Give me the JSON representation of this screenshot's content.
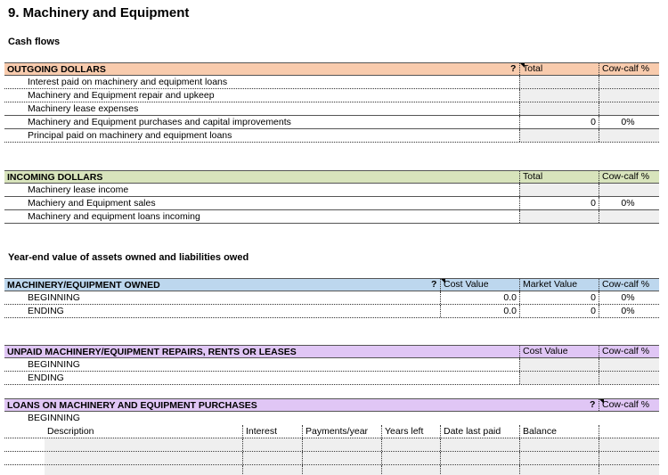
{
  "title": "9. Machinery and Equipment",
  "cash_flows_label": "Cash flows",
  "year_end_label": "Year-end value of assets owned and liabilities owed",
  "colors": {
    "outgoing": "#f8cbad",
    "incoming": "#d8e4bc",
    "owned": "#bdd7ee",
    "unpaid": "#e0c6f5",
    "loans": "#e0c6f5",
    "input_cell": "#efefef"
  },
  "outgoing": {
    "header": "OUTGOING DOLLARS",
    "has_help": true,
    "help": "?",
    "columns": [
      "Total",
      "Cow-calf %"
    ],
    "rows": [
      {
        "label": "Interest paid on machinery and equipment loans",
        "values": [
          "",
          ""
        ],
        "input": true
      },
      {
        "label": "Machinery and Equipment repair and upkeep",
        "values": [
          "",
          ""
        ],
        "input": true
      },
      {
        "label": "Machinery lease expenses",
        "values": [
          "",
          ""
        ],
        "input": true
      },
      {
        "label": "Machinery and Equipment purchases and capital improvements",
        "values": [
          "0",
          "0%"
        ],
        "input": false
      },
      {
        "label": "Principal paid on machinery and equipment loans",
        "values": [
          "",
          ""
        ],
        "input": true
      }
    ]
  },
  "incoming": {
    "header": "INCOMING DOLLARS",
    "columns": [
      "Total",
      "Cow-calf %"
    ],
    "rows": [
      {
        "label": "Machinery lease income",
        "values": [
          "",
          ""
        ],
        "input": true
      },
      {
        "label": "Machiery and Equipment sales",
        "values": [
          "0",
          "0%"
        ],
        "input": false
      },
      {
        "label": "Machinery and equipment loans incoming",
        "values": [
          "",
          ""
        ],
        "input": true
      }
    ]
  },
  "owned": {
    "header": "MACHINERY/EQUIPMENT OWNED",
    "has_help": true,
    "help": "?",
    "columns": [
      "Cost Value",
      "Market Value",
      "Cow-calf %"
    ],
    "rows": [
      {
        "label": "BEGINNING",
        "values": [
          "0.0",
          "0",
          "0%"
        ]
      },
      {
        "label": "ENDING",
        "values": [
          "0.0",
          "0",
          "0%"
        ]
      }
    ]
  },
  "unpaid": {
    "header": "UNPAID MACHINERY/EQUIPMENT REPAIRS, RENTS OR LEASES",
    "columns": [
      "Cost Value",
      "Cow-calf %"
    ],
    "rows": [
      {
        "label": "BEGINNING",
        "values": [
          "",
          ""
        ],
        "input": true
      },
      {
        "label": "ENDING",
        "values": [
          "",
          ""
        ],
        "input": true
      }
    ]
  },
  "loans": {
    "header": "LOANS ON MACHINERY AND EQUIPMENT PURCHASES",
    "has_help": true,
    "help": "?",
    "columns": [
      "Cow-calf %"
    ],
    "beginning_label": "BEGINNING",
    "table_columns": [
      "Description",
      "Interest",
      "Payments/year",
      "Years left",
      "Date last paid",
      "Balance",
      ""
    ],
    "table_rows": [
      [
        "",
        "",
        "",
        "",
        "",
        "",
        ""
      ],
      [
        "",
        "",
        "",
        "",
        "",
        "",
        ""
      ],
      [
        "",
        "",
        "",
        "",
        "",
        "",
        ""
      ]
    ]
  }
}
